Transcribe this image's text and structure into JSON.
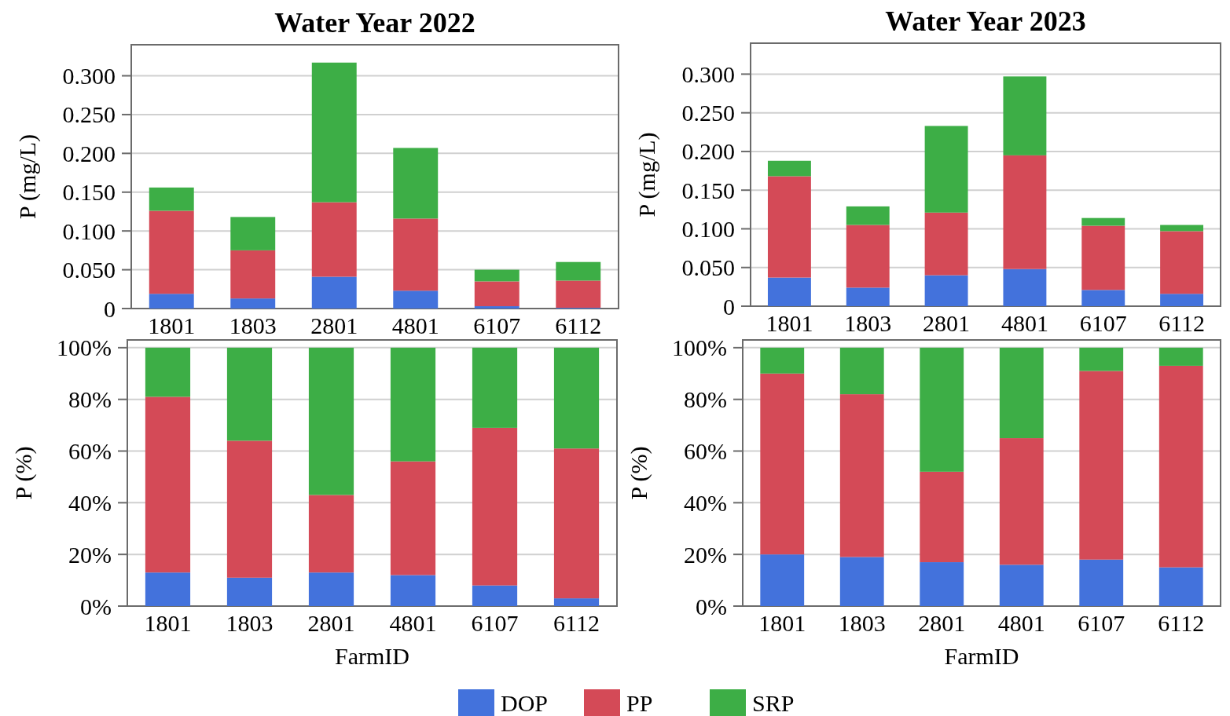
{
  "chart_data": [
    {
      "type": "bar",
      "title": "Water Year 2022",
      "ylabel": "P (mg/L)",
      "categories": [
        "1801",
        "1803",
        "2801",
        "4801",
        "6107",
        "6112"
      ],
      "stacked": true,
      "grid": "y",
      "legend": false,
      "ylim": [
        0,
        0.34
      ],
      "yticks": [
        0,
        {
          "value": 0.05,
          "label": "0.050"
        },
        {
          "value": 0.1,
          "label": "0.100"
        },
        {
          "value": 0.15,
          "label": "0.150"
        },
        {
          "value": 0.2,
          "label": "0.200"
        },
        {
          "value": 0.25,
          "label": "0.250"
        },
        {
          "value": 0.3,
          "label": "0.300"
        }
      ],
      "series": [
        {
          "color": "#4372dc",
          "values": [
            0.019,
            0.013,
            0.041,
            0.023,
            0.003,
            0.001
          ]
        },
        {
          "color": "#d44a57",
          "values": [
            0.107,
            0.062,
            0.096,
            0.093,
            0.032,
            0.035
          ]
        },
        {
          "color": "#3dae46",
          "values": [
            0.03,
            0.043,
            0.18,
            0.091,
            0.015,
            0.024
          ]
        }
      ]
    },
    {
      "type": "bar",
      "title": "Water Year 2023",
      "ylabel": "P (mg/L)",
      "categories": [
        "1801",
        "1803",
        "2801",
        "4801",
        "6107",
        "6112"
      ],
      "stacked": true,
      "grid": "y",
      "legend": false,
      "ylim": [
        0,
        0.34
      ],
      "yticks": [
        0,
        {
          "value": 0.05,
          "label": "0.050"
        },
        {
          "value": 0.1,
          "label": "0.100"
        },
        {
          "value": 0.15,
          "label": "0.150"
        },
        {
          "value": 0.2,
          "label": "0.200"
        },
        {
          "value": 0.25,
          "label": "0.250"
        },
        {
          "value": 0.3,
          "label": "0.300"
        }
      ],
      "series": [
        {
          "color": "#4372dc",
          "values": [
            0.037,
            0.024,
            0.04,
            0.048,
            0.021,
            0.016
          ]
        },
        {
          "color": "#d44a57",
          "values": [
            0.131,
            0.081,
            0.081,
            0.147,
            0.083,
            0.081
          ]
        },
        {
          "color": "#3dae46",
          "values": [
            0.02,
            0.024,
            0.112,
            0.102,
            0.01,
            0.008
          ]
        }
      ]
    },
    {
      "type": "bar",
      "xlabel": "FarmID",
      "ylabel": "P (%)",
      "categories": [
        "1801",
        "1803",
        "2801",
        "4801",
        "6107",
        "6112"
      ],
      "stacked": true,
      "grid": "y",
      "legend": false,
      "ylim": [
        0,
        103
      ],
      "yticks": [
        {
          "value": 0,
          "label": "0%"
        },
        {
          "value": 20,
          "label": "20%"
        },
        {
          "value": 40,
          "label": "40%"
        },
        {
          "value": 60,
          "label": "60%"
        },
        {
          "value": 80,
          "label": "80%"
        },
        {
          "value": 100,
          "label": "100%"
        }
      ],
      "series": [
        {
          "color": "#4372dc",
          "values": [
            13,
            11,
            13,
            12,
            8,
            3
          ]
        },
        {
          "color": "#d44a57",
          "values": [
            68,
            53,
            30,
            44,
            61,
            58
          ]
        },
        {
          "color": "#3dae46",
          "values": [
            19,
            36,
            57,
            44,
            31,
            39
          ]
        }
      ]
    },
    {
      "type": "bar",
      "xlabel": "FarmID",
      "ylabel": "P (%)",
      "categories": [
        "1801",
        "1803",
        "2801",
        "4801",
        "6107",
        "6112"
      ],
      "stacked": true,
      "grid": "y",
      "legend": "bottom",
      "ylim": [
        0,
        103
      ],
      "yticks": [
        {
          "value": 0,
          "label": "0%"
        },
        {
          "value": 20,
          "label": "20%"
        },
        {
          "value": 40,
          "label": "40%"
        },
        {
          "value": 60,
          "label": "60%"
        },
        {
          "value": 80,
          "label": "80%"
        },
        {
          "value": 100,
          "label": "100%"
        }
      ],
      "series": [
        {
          "name": "DOP",
          "color": "#4372dc",
          "values": [
            20,
            19,
            17,
            16,
            18,
            15
          ]
        },
        {
          "name": "PP",
          "color": "#d44a57",
          "values": [
            70,
            63,
            35,
            49,
            73,
            78
          ]
        },
        {
          "name": "SRP",
          "color": "#3dae46",
          "values": [
            10,
            18,
            48,
            35,
            9,
            7
          ]
        }
      ]
    }
  ]
}
